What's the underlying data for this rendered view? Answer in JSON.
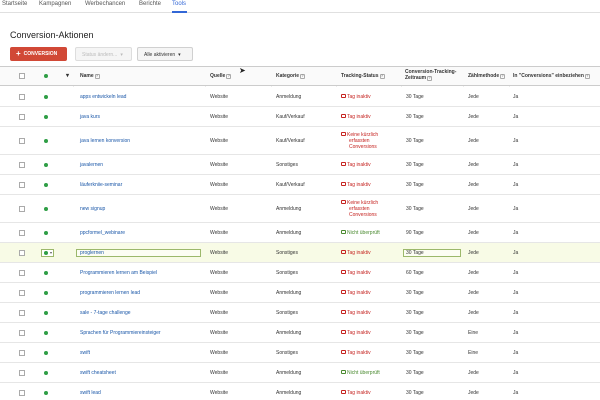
{
  "nav": {
    "tabs": [
      {
        "label": "Startseite"
      },
      {
        "label": "Kampagnen"
      },
      {
        "label": "Werbechancen"
      },
      {
        "label": "Berichte"
      },
      {
        "label": "Tools"
      }
    ],
    "active_tab": "Tools"
  },
  "page": {
    "title": "Conversion-Aktionen"
  },
  "toolbar": {
    "conversion_label": "CONVERSION",
    "status_label": "Status ändern...",
    "activate_label": "Alle aktivieren"
  },
  "table": {
    "headers": {
      "name": "Name",
      "source": "Quelle",
      "category": "Kategorie",
      "tracking": "Tracking-Status",
      "period_line1": "Conversion-Tracking-",
      "period_line2": "Zeitraum",
      "method": "Zählmethode",
      "include": "In \"Conversions\" einbeziehen"
    },
    "rows": [
      {
        "name": "apps entwickeln lead",
        "source": "Website",
        "category": "Anmeldung",
        "status": [
          "Tag inaktiv"
        ],
        "status_color": "red",
        "period": "30 Tage",
        "method": "Jede",
        "include": "Ja"
      },
      {
        "name": "java kurs",
        "source": "Website",
        "category": "Kauf/Verkauf",
        "status": [
          "Tag inaktiv"
        ],
        "status_color": "red",
        "period": "30 Tage",
        "method": "Jede",
        "include": "Ja"
      },
      {
        "name": "java lernen konversion",
        "source": "Website",
        "category": "Kauf/Verkauf",
        "status": [
          "Keine kürzlich",
          "erfassten",
          "Conversions"
        ],
        "status_color": "red",
        "period": "30 Tage",
        "method": "Jede",
        "include": "Ja"
      },
      {
        "name": "javalernen",
        "source": "Website",
        "category": "Sonstiges",
        "status": [
          "Tag inaktiv"
        ],
        "status_color": "red",
        "period": "30 Tage",
        "method": "Jede",
        "include": "Ja"
      },
      {
        "name": "läuferkniie-seminar",
        "source": "Website",
        "category": "Kauf/Verkauf",
        "status": [
          "Tag inaktiv"
        ],
        "status_color": "red",
        "period": "30 Tage",
        "method": "Jede",
        "include": "Ja"
      },
      {
        "name": "new signup",
        "source": "Website",
        "category": "Anmeldung",
        "status": [
          "Keine kürzlich",
          "erfassten",
          "Conversions"
        ],
        "status_color": "red",
        "period": "30 Tage",
        "method": "Jede",
        "include": "Ja"
      },
      {
        "name": "ppcformel_webinare",
        "source": "Website",
        "category": "Anmeldung",
        "status": [
          "Nicht überprüft"
        ],
        "status_color": "green",
        "period": "90 Tage",
        "method": "Jede",
        "include": "Ja"
      },
      {
        "name": "proglernen",
        "source": "Website",
        "category": "Sonstiges",
        "status": [
          "Tag inaktiv"
        ],
        "status_color": "red",
        "period": "30 Tage",
        "method": "Jede",
        "include": "Ja"
      },
      {
        "name": "Programmieren lernen am Beispiel",
        "source": "Website",
        "category": "Sonstiges",
        "status": [
          "Tag inaktiv"
        ],
        "status_color": "red",
        "period": "60 Tage",
        "method": "Jede",
        "include": "Ja"
      },
      {
        "name": "programmieren lernen lead",
        "source": "Website",
        "category": "Anmeldung",
        "status": [
          "Tag inaktiv"
        ],
        "status_color": "red",
        "period": "30 Tage",
        "method": "Jede",
        "include": "Ja"
      },
      {
        "name": "sale - 7-tage challenge",
        "source": "Website",
        "category": "Sonstiges",
        "status": [
          "Tag inaktiv"
        ],
        "status_color": "red",
        "period": "30 Tage",
        "method": "Jede",
        "include": "Ja"
      },
      {
        "name": "Sprachen für Programmiereinsteiger",
        "source": "Website",
        "category": "Anmeldung",
        "status": [
          "Tag inaktiv"
        ],
        "status_color": "red",
        "period": "30 Tage",
        "method": "Eine",
        "include": "Ja"
      },
      {
        "name": "swift",
        "source": "Website",
        "category": "Sonstiges",
        "status": [
          "Tag inaktiv"
        ],
        "status_color": "red",
        "period": "30 Tage",
        "method": "Eine",
        "include": "Ja"
      },
      {
        "name": "swift cheatsheet",
        "source": "Website",
        "category": "Anmeldung",
        "status": [
          "Nicht überprüft"
        ],
        "status_color": "green",
        "period": "30 Tage",
        "method": "Jede",
        "include": "Ja"
      },
      {
        "name": "swift lead",
        "source": "Website",
        "category": "Anmeldung",
        "status": [
          "Tag inaktiv"
        ],
        "status_color": "red",
        "period": "30 Tage",
        "method": "Jede",
        "include": "Ja"
      }
    ],
    "selected_row_index": 7
  },
  "colors": {
    "primary_button": "#d14836",
    "link": "#1a57a8",
    "status_inactive": "#c5221f",
    "status_unverified": "#4a8a30",
    "active_dot": "#2e9e45"
  }
}
